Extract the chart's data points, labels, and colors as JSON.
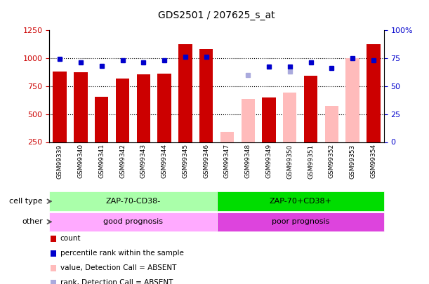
{
  "title": "GDS2501 / 207625_s_at",
  "samples": [
    "GSM99339",
    "GSM99340",
    "GSM99341",
    "GSM99342",
    "GSM99343",
    "GSM99344",
    "GSM99345",
    "GSM99346",
    "GSM99347",
    "GSM99348",
    "GSM99349",
    "GSM99350",
    "GSM99351",
    "GSM99352",
    "GSM99353",
    "GSM99354"
  ],
  "values": [
    880,
    870,
    655,
    815,
    855,
    860,
    1120,
    1080,
    340,
    635,
    650,
    690,
    840,
    570,
    1000,
    1120
  ],
  "ranks": [
    74,
    71,
    68,
    73,
    71,
    73,
    76,
    76,
    null,
    null,
    67,
    67,
    71,
    66,
    75,
    73
  ],
  "absent_ranks": [
    null,
    null,
    null,
    null,
    null,
    null,
    null,
    null,
    null,
    60,
    null,
    63,
    null,
    null,
    null,
    null
  ],
  "is_absent": [
    false,
    false,
    false,
    false,
    false,
    false,
    false,
    false,
    true,
    true,
    false,
    true,
    false,
    true,
    true,
    false
  ],
  "cell_type_groups": [
    {
      "label": "ZAP-70-CD38-",
      "start": 0,
      "end": 7,
      "color": "#aaffaa"
    },
    {
      "label": "ZAP-70+CD38+",
      "start": 8,
      "end": 15,
      "color": "#00dd00"
    }
  ],
  "other_groups": [
    {
      "label": "good prognosis",
      "start": 0,
      "end": 7,
      "color": "#ffaaff"
    },
    {
      "label": "poor prognosis",
      "start": 8,
      "end": 15,
      "color": "#dd44dd"
    }
  ],
  "ylim_left": [
    250,
    1250
  ],
  "ylim_right": [
    0,
    100
  ],
  "bar_color_present": "#cc0000",
  "bar_color_absent": "#ffbbbb",
  "rank_color_present": "#0000cc",
  "rank_color_absent": "#aaaadd",
  "bg_color": "#ffffff",
  "tick_label_color_left": "#cc0000",
  "tick_label_color_right": "#0000cc",
  "legend_items": [
    {
      "label": "count",
      "color": "#cc0000"
    },
    {
      "label": "percentile rank within the sample",
      "color": "#0000cc"
    },
    {
      "label": "value, Detection Call = ABSENT",
      "color": "#ffbbbb"
    },
    {
      "label": "rank, Detection Call = ABSENT",
      "color": "#aaaadd"
    }
  ],
  "row_label_cell_type": "cell type",
  "row_label_other": "other"
}
